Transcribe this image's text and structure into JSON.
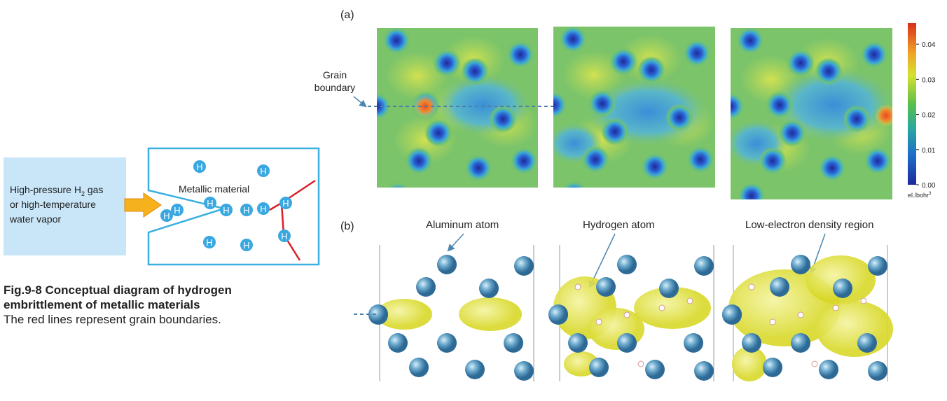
{
  "diagram": {
    "source_label_parts": [
      "High-pressure H",
      "2",
      " gas"
    ],
    "source_lines": [
      "or high-temperature",
      "water vapor"
    ],
    "material_label": "Metallic material",
    "hydrogen_symbol": "H"
  },
  "caption": {
    "title_lines": [
      "Fig.9-8  Conceptual diagram of hydrogen",
      "embrittlement of metallic materials"
    ],
    "text": "The red lines represent grain boundaries."
  },
  "panel_a": {
    "label": "(a)",
    "grain_boundary_lines": [
      "Grain",
      "boundary"
    ]
  },
  "colorbar": {
    "lim": [
      0,
      0.046
    ],
    "ticks": [
      {
        "value": 0,
        "label": "0.00"
      },
      {
        "value": 0.01,
        "label": "0.01"
      },
      {
        "value": 0.02,
        "label": "0.02"
      },
      {
        "value": 0.03,
        "label": "0.03"
      },
      {
        "value": 0.04,
        "label": "0.04"
      }
    ],
    "unit_base": "el./bohr",
    "unit_sup": "3"
  },
  "panel_b": {
    "label": "(b)",
    "annotations": [
      "Aluminum atom",
      "Hydrogen atom",
      "Low-electron density region"
    ]
  }
}
